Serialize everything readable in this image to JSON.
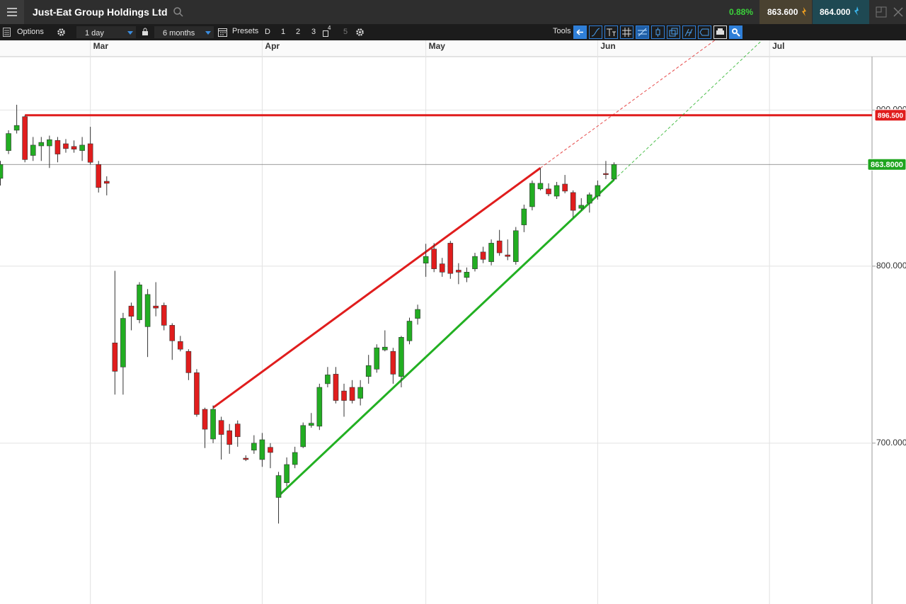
{
  "header": {
    "title": "Just-Eat Group Holdings Ltd",
    "change": "0.88%",
    "sell": "863.600",
    "buy": "864.000"
  },
  "toolbar": {
    "options": "Options",
    "interval": "1 day",
    "range": "6 months",
    "presets": "Presets",
    "preset_buttons": [
      "D",
      "1",
      "2",
      "3",
      "4",
      "5"
    ],
    "tools": "Tools"
  },
  "chart_data": {
    "type": "candlestick",
    "log": true,
    "grid": true,
    "up_color": "#22ad22",
    "down_color": "#e01d1d",
    "categories": [
      null,
      null,
      null,
      null,
      null,
      null,
      null,
      null,
      null,
      null,
      null,
      "Mar",
      null,
      null,
      null,
      null,
      null,
      null,
      null,
      null,
      null,
      null,
      null,
      null,
      null,
      null,
      null,
      null,
      null,
      null,
      null,
      null,
      "Apr",
      null,
      null,
      null,
      null,
      null,
      null,
      null,
      null,
      null,
      null,
      null,
      null,
      null,
      null,
      null,
      null,
      null,
      null,
      null,
      "May",
      null,
      null,
      null,
      null,
      null,
      null,
      null,
      null,
      null,
      null,
      null,
      null,
      null,
      null,
      null,
      null,
      null,
      null,
      null,
      null,
      "Jun",
      null,
      null,
      null,
      null,
      null,
      null,
      null,
      null,
      null,
      null,
      null,
      null,
      null,
      null,
      null,
      null,
      null,
      null,
      null,
      null,
      "Jul"
    ],
    "open": [
      854.8,
      872.9,
      886.4,
      895.5,
      869.7,
      876.0,
      876.0,
      879.6,
      877.4,
      875.6,
      872.9,
      877.4,
      863.8,
      852.9,
      755.0,
      741.4,
      776.3,
      768.3,
      764.3,
      776.3,
      776.7,
      765.1,
      755.8,
      750.2,
      738.2,
      718.1,
      702.2,
      712.1,
      706.6,
      710.2,
      692.1,
      696.3,
      691.4,
      697.8,
      671.9,
      679.4,
      688.8,
      698.1,
      709.4,
      709.0,
      732.1,
      737.4,
      728.1,
      730.1,
      724.1,
      736.1,
      740.2,
      751.0,
      750.2,
      736.1,
      756.2,
      769.1,
      801.8,
      810.4,
      801.4,
      814.0,
      797.6,
      793.2,
      798.4,
      808.6,
      802.7,
      815.4,
      806.8,
      802.7,
      825.3,
      836.7,
      848.0,
      848.0,
      843.4,
      851.1,
      845.7,
      835.7,
      838.9,
      843.4,
      857.9,
      854.3,
      null,
      null,
      null,
      null,
      null,
      null,
      null,
      null,
      null,
      null,
      null,
      null,
      null,
      null,
      null,
      null,
      null,
      null,
      null
    ],
    "high": [
      866.1,
      886.4,
      903.6,
      896.4,
      881.9,
      881.9,
      882.8,
      881.9,
      880.5,
      879.6,
      881.9,
      888.7,
      866.1,
      856.1,
      797.2,
      772.3,
      778.3,
      790.4,
      786.3,
      790.4,
      778.3,
      766.3,
      759.0,
      751.4,
      740.2,
      719.0,
      720.2,
      714.1,
      710.2,
      712.1,
      693.6,
      704.2,
      705.4,
      700.0,
      685.0,
      692.5,
      698.1,
      711.0,
      716.1,
      732.1,
      741.4,
      741.4,
      732.1,
      734.1,
      734.1,
      748.2,
      754.2,
      762.2,
      752.2,
      759.0,
      769.5,
      777.1,
      813.6,
      814.0,
      805.0,
      815.4,
      801.8,
      799.2,
      808.1,
      811.8,
      816.3,
      822.2,
      816.3,
      824.0,
      838.0,
      853.4,
      861.5,
      851.6,
      852.5,
      857.0,
      847.1,
      842.1,
      845.7,
      853.4,
      866.1,
      865.2,
      null,
      null,
      null,
      null,
      null,
      null,
      null,
      null,
      null,
      null,
      null,
      null,
      null,
      null,
      null,
      null,
      null,
      null,
      null
    ],
    "low": [
      850.2,
      870.6,
      884.2,
      865.2,
      866.1,
      866.1,
      861.5,
      865.2,
      871.5,
      871.5,
      866.1,
      863.8,
      845.7,
      843.9,
      726.1,
      726.1,
      762.2,
      766.3,
      747.0,
      770.3,
      762.2,
      745.4,
      750.2,
      734.1,
      714.1,
      697.4,
      700.0,
      691.4,
      694.4,
      698.1,
      690.6,
      694.4,
      687.6,
      686.9,
      658.8,
      677.5,
      686.9,
      697.4,
      708.2,
      707.0,
      730.1,
      721.3,
      714.1,
      721.3,
      720.2,
      732.1,
      738.2,
      750.2,
      732.1,
      730.1,
      754.2,
      765.5,
      793.6,
      796.4,
      793.6,
      792.4,
      789.2,
      790.4,
      796.8,
      801.8,
      800.5,
      806.3,
      803.6,
      800.9,
      820.8,
      834.4,
      847.1,
      843.4,
      841.6,
      845.2,
      829.9,
      834.4,
      833.0,
      841.2,
      854.3,
      853.4,
      null,
      null,
      null,
      null,
      null,
      null,
      null,
      null,
      null,
      null,
      null,
      null,
      null,
      null,
      null,
      null,
      null,
      null,
      null
    ],
    "close": [
      863.8,
      884.2,
      889.6,
      867.0,
      876.5,
      878.3,
      880.1,
      870.6,
      874.2,
      873.8,
      876.5,
      865.2,
      848.9,
      851.6,
      739.0,
      769.1,
      770.3,
      788.8,
      783.1,
      775.1,
      765.1,
      756.2,
      751.4,
      738.2,
      715.3,
      707.4,
      718.1,
      704.6,
      699.3,
      703.4,
      691.4,
      700.0,
      701.8,
      695.1,
      683.1,
      688.8,
      695.1,
      709.4,
      710.6,
      730.1,
      737.0,
      722.9,
      722.9,
      722.9,
      730.1,
      742.2,
      752.2,
      752.6,
      737.4,
      758.2,
      767.5,
      774.3,
      805.9,
      798.4,
      796.4,
      795.6,
      796.4,
      796.4,
      805.9,
      804.1,
      814.0,
      808.1,
      805.9,
      821.7,
      835.3,
      851.6,
      851.6,
      844.8,
      850.2,
      846.6,
      834.4,
      837.6,
      844.3,
      850.2,
      857.5,
      863.8,
      null,
      null,
      null,
      null,
      null,
      null,
      null,
      null,
      null,
      null,
      null,
      null,
      null,
      null,
      null,
      null,
      null,
      null,
      null
    ],
    "ylim": [
      620,
      937
    ],
    "yticks": [
      {
        "value": 700,
        "label": "700.000"
      },
      {
        "value": 800,
        "label": "800.000"
      },
      {
        "value": 900,
        "label": "900.000"
      }
    ],
    "trendlines": [
      {
        "color": "#e01d1d",
        "from": {
          "index": 26,
          "value": 719.0
        },
        "to": {
          "index": 66,
          "value": 861.5
        }
      },
      {
        "color": "#22b022",
        "from": {
          "index": 34,
          "value": 672.7
        },
        "to": {
          "index": 75,
          "value": 853.9
        }
      }
    ],
    "horizontal_line": {
      "value": 896.5,
      "label": "896.500",
      "color": "#e01d1d",
      "from_index": 3
    },
    "last_price": {
      "value": 863.8,
      "label": "863.8000",
      "color": "#1fa51f"
    }
  }
}
